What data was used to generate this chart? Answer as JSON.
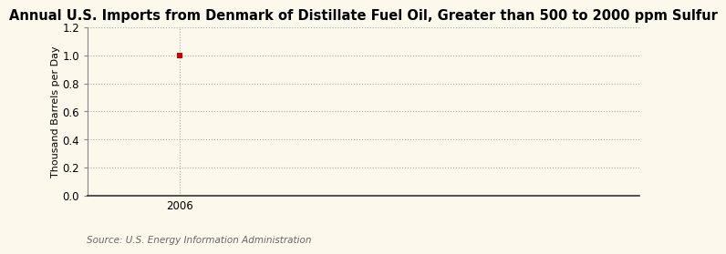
{
  "title": "Annual U.S. Imports from Denmark of Distillate Fuel Oil, Greater than 500 to 2000 ppm Sulfur",
  "ylabel": "Thousand Barrels per Day",
  "source_text": "Source: U.S. Energy Information Administration",
  "x_data": [
    2006
  ],
  "y_data": [
    1.0
  ],
  "ylim": [
    0.0,
    1.2
  ],
  "yticks": [
    0.0,
    0.2,
    0.4,
    0.6,
    0.8,
    1.0,
    1.2
  ],
  "xlim": [
    2005.7,
    2007.5
  ],
  "xticks": [
    2006
  ],
  "data_color": "#cc0000",
  "grid_color": "#aaaaaa",
  "grid_linestyle": "dotted",
  "background_color": "#fdf8ec",
  "title_fontsize": 10.5,
  "label_fontsize": 8,
  "tick_fontsize": 8.5,
  "source_fontsize": 7.5,
  "spine_color": "#888888",
  "bottom_spine_color": "#333333"
}
